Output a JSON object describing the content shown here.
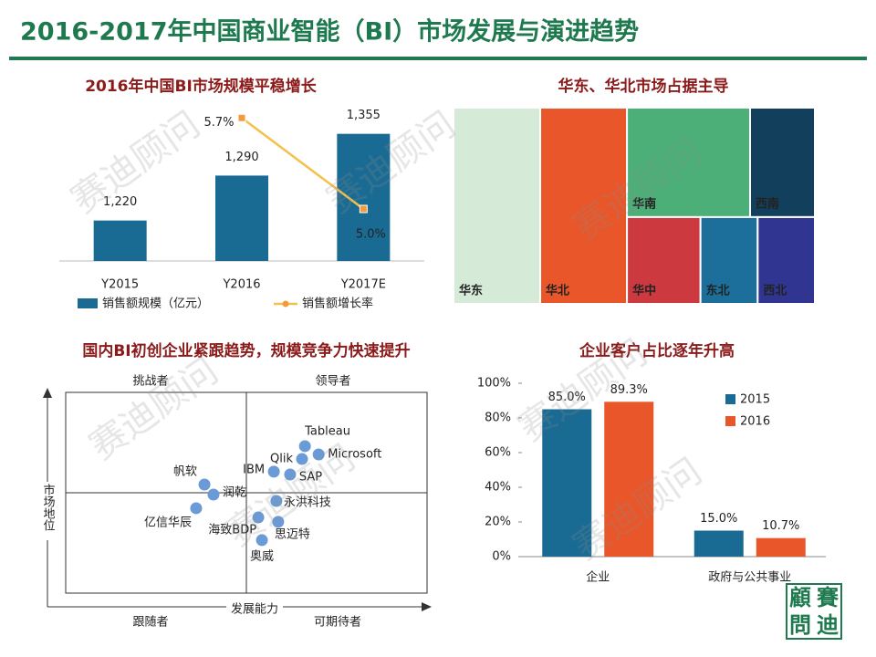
{
  "title": "2016-2017年中国商业智能（BI）市场发展与演进趋势",
  "watermark": "赛迪顾问",
  "logo": [
    "顧",
    "賽",
    "問",
    "迪"
  ],
  "chart_data": [
    {
      "type": "bar",
      "title": "2016年中国BI市场规模平稳增长",
      "categories": [
        "Y2015",
        "Y2016",
        "Y2017E"
      ],
      "ylim": [
        1157,
        1400
      ],
      "y2lim": [
        4.6,
        5.8
      ],
      "series": [
        {
          "name": "销售额规模（亿元）",
          "type": "bar",
          "color": "#1a6b93",
          "values": [
            1220,
            1290,
            1355
          ],
          "value_labels": [
            "1,220",
            "1,290",
            "1,355"
          ]
        },
        {
          "name": "销售额增长率",
          "type": "line",
          "axis": "y2",
          "color": "#f5c04a",
          "values": [
            null,
            5.7,
            5.0
          ],
          "value_labels": [
            null,
            "5.7%",
            "5.0%"
          ]
        }
      ]
    },
    {
      "type": "treemap",
      "title": "华东、华北市场占据主导",
      "categories": [
        "华东",
        "华北",
        "华南",
        "西南",
        "华中",
        "东北",
        "西北"
      ],
      "values": [
        24,
        24,
        19,
        10,
        9,
        7,
        7
      ],
      "colors": [
        "#d5ebd8",
        "#e8562a",
        "#4caf78",
        "#12405c",
        "#cc3a40",
        "#1b6f9a",
        "#2f3590"
      ]
    },
    {
      "type": "scatter",
      "title": "国内BI初创企业紧跟趋势，规模竞争力快速提升",
      "xlabel": "发展能力",
      "ylabel": "市场地位",
      "quadrant_labels": [
        "挑战者",
        "领导者",
        "跟随者",
        "可期待者"
      ],
      "xlim": [
        0,
        100
      ],
      "ylim": [
        0,
        100
      ],
      "color": "#6b9bd6",
      "point_labels": [
        "Tableau",
        "Qlik",
        "Microsoft",
        "IBM",
        "SAP",
        "帆软",
        "润乾",
        "亿信华辰",
        "永洪科技",
        "海致BDP",
        "思迈特",
        "奥威"
      ],
      "x": [
        66.2,
        65.4,
        70.0,
        57.6,
        62.1,
        38.4,
        40.9,
        36.1,
        58.3,
        53.3,
        58.8,
        54.3
      ],
      "values": [
        73.2,
        66.8,
        69.1,
        60.5,
        59.1,
        54.1,
        49.1,
        42.3,
        45.9,
        37.7,
        35.5,
        26.4
      ]
    },
    {
      "type": "bar",
      "title": "企业客户占比逐年升高",
      "categories": [
        "企业",
        "政府与公共事业"
      ],
      "ylim": [
        0,
        100
      ],
      "yticks": [
        {
          "value": 0,
          "label": "0%"
        },
        {
          "value": 20,
          "label": "20%"
        },
        {
          "value": 40,
          "label": "40%"
        },
        {
          "value": 60,
          "label": "60%"
        },
        {
          "value": 80,
          "label": "80%"
        },
        {
          "value": 100,
          "label": "100%"
        }
      ],
      "series": [
        {
          "name": "2015",
          "color": "#1a6b93",
          "values": [
            85.0,
            15.0
          ],
          "value_labels": [
            "85.0%",
            "15.0%"
          ]
        },
        {
          "name": "2016",
          "color": "#e8562a",
          "values": [
            89.3,
            10.7
          ],
          "value_labels": [
            "89.3%",
            "10.7%"
          ]
        }
      ]
    }
  ]
}
